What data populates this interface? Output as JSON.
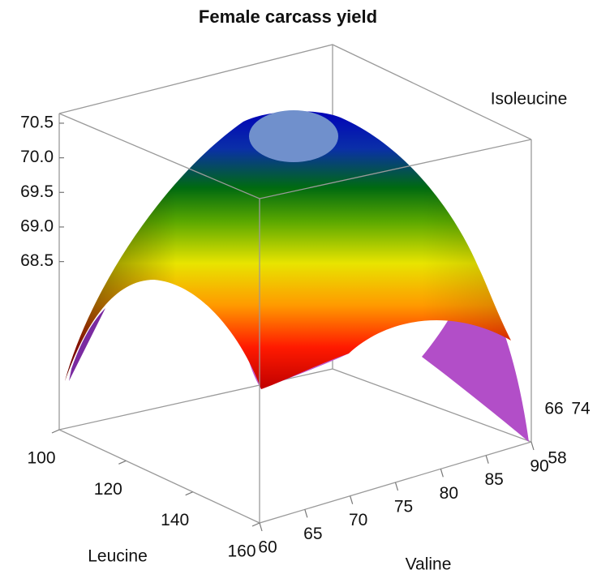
{
  "chart_data": {
    "type": "surface",
    "title": "Female carcass yield",
    "xlabel": "Leucine",
    "xlim": [
      100,
      160
    ],
    "xticks": [
      100,
      120,
      140,
      160
    ],
    "ylabel": "Valine",
    "ylim": [
      60,
      90
    ],
    "yticks": [
      60,
      65,
      70,
      75,
      80,
      85,
      90
    ],
    "zlim": [
      66.07,
      70.64
    ],
    "zticks": [
      {
        "value": 68.5,
        "label": "68.5"
      },
      {
        "value": 69,
        "label": "69.0"
      },
      {
        "value": 69.5,
        "label": "69.5"
      },
      {
        "value": 70,
        "label": "70.0"
      },
      70.5
    ],
    "wlabel": "Isoleucine",
    "wlim": [
      58,
      74
    ],
    "wticks": [
      58,
      66,
      74
    ]
  }
}
